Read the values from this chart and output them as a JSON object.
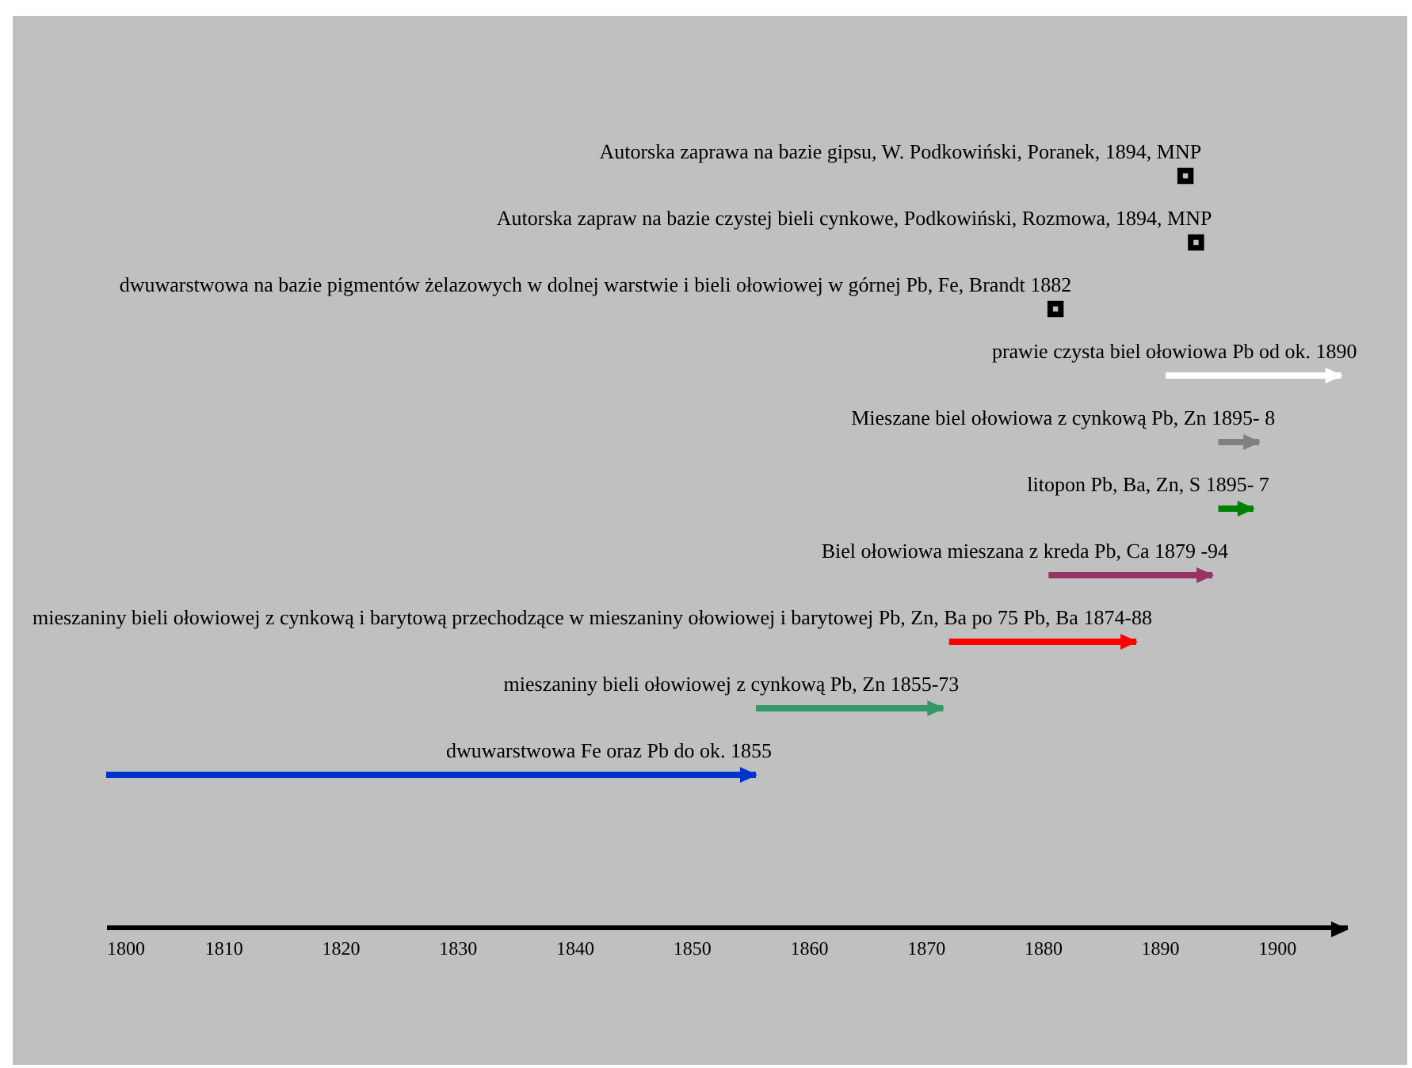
{
  "chart_data": {
    "type": "bar",
    "orientation": "horizontal",
    "categories": [
      "Autorska zaprawa na bazie gipsu, W. Podkowiński, Poranek, 1894, MNP",
      "Autorska zapraw na bazie czystej bieli cynkowe, Podkowiński, Rozmowa, 1894, MNP",
      "dwuwarstwowa  na bazie pigmentów żelazowych w dolnej warstwie i bieli ołowiowej w górnej Pb, Fe, Brandt 1882",
      "prawie czysta biel ołowiowa  Pb   od ok. 1890",
      "Mieszane biel ołowiowa z cynkową Pb, Zn 1895- 8",
      "litopon Pb, Ba, Zn, S 1895- 7",
      "Biel ołowiowa mieszana z kreda Pb, Ca 1879 -94",
      "mieszaniny bieli ołowiowej z cynkową i barytową przechodzące w mieszaniny ołowiowej i barytowej Pb, Zn, Ba po 75  Pb, Ba 1874-88",
      "mieszaniny bieli ołowiowej z cynkową  Pb, Zn   1855-73",
      "dwuwarstwowa Fe oraz Pb   do ok.   1855"
    ],
    "series": [
      {
        "base": [
          null,
          null,
          null,
          1890.5,
          1895,
          1895,
          1880.5,
          1872,
          1855.5,
          1800
        ],
        "values": [
          null,
          null,
          null,
          15,
          3.5,
          3,
          14,
          16,
          16,
          55.5
        ],
        "colors": [
          null,
          null,
          null,
          "#ffffff",
          "#808080",
          "#008000",
          "#993366",
          "#ff0000",
          "#339966",
          "#0033cc"
        ]
      },
      {
        "type": "scatter",
        "color": "#000000",
        "marker": "square",
        "values": [
          1892.2,
          1893.1,
          1881.1,
          null,
          null,
          null,
          null,
          null,
          null,
          null
        ]
      }
    ],
    "xlim": [
      1800,
      1906
    ],
    "xticks": [
      1800,
      1810,
      1820,
      1830,
      1840,
      1850,
      1860,
      1870,
      1880,
      1890,
      1900
    ],
    "grid": false
  }
}
